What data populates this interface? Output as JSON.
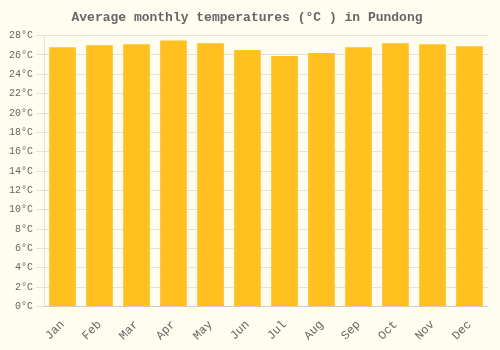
{
  "chart_data": {
    "type": "bar",
    "title": "Average monthly temperatures (°C ) in Pundong",
    "categories": [
      "Jan",
      "Feb",
      "Mar",
      "Apr",
      "May",
      "Jun",
      "Jul",
      "Aug",
      "Sep",
      "Oct",
      "Nov",
      "Dec"
    ],
    "values": [
      26.8,
      27.0,
      27.1,
      27.5,
      27.2,
      26.5,
      25.9,
      26.2,
      26.8,
      27.2,
      27.1,
      26.9
    ],
    "color": "#FFC020",
    "ylim": [
      0,
      28
    ],
    "yticks": [
      {
        "value": 0,
        "label": "0°C"
      },
      {
        "value": 2,
        "label": "2°C"
      },
      {
        "value": 4,
        "label": "4°C"
      },
      {
        "value": 6,
        "label": "6°C"
      },
      {
        "value": 8,
        "label": "8°C"
      },
      {
        "value": 10,
        "label": "10°C"
      },
      {
        "value": 12,
        "label": "12°C"
      },
      {
        "value": 14,
        "label": "14°C"
      },
      {
        "value": 16,
        "label": "16°C"
      },
      {
        "value": 18,
        "label": "18°C"
      },
      {
        "value": 20,
        "label": "20°C"
      },
      {
        "value": 22,
        "label": "22°C"
      },
      {
        "value": 24,
        "label": "24°C"
      },
      {
        "value": 26,
        "label": "26°C"
      },
      {
        "value": 28,
        "label": "28°C"
      }
    ],
    "grid": true
  }
}
